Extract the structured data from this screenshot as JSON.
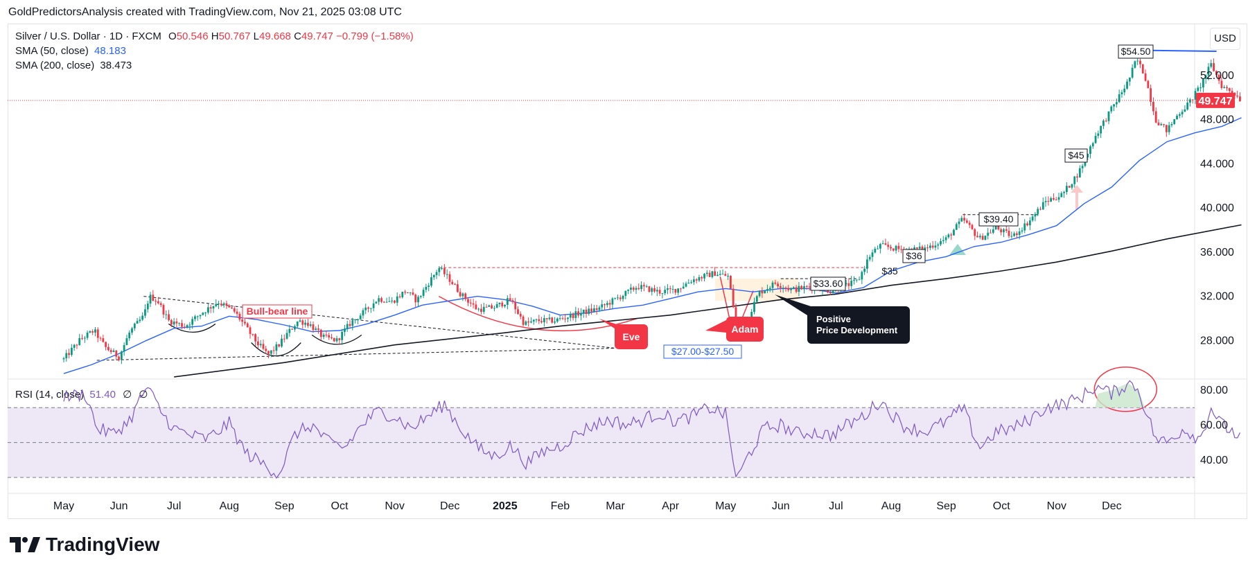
{
  "caption": "GoldPredictorsAnalysis created with TradingView.com, Nov 21, 2025 03:08 UTC",
  "brand": "TradingView",
  "currency_button": "USD",
  "legend": {
    "symbol": "Silver / U.S. Dollar · 1D · FXCM",
    "o_label": "O",
    "o_value": "50.546",
    "h_label": "H",
    "h_value": "50.767",
    "l_label": "L",
    "l_value": "49.668",
    "c_label": "C",
    "c_value": "49.747",
    "change": "−0.799 (−1.58%)",
    "sma50_label": "SMA (50, close)",
    "sma50_value": "48.183",
    "sma200_label": "SMA (200, close)",
    "sma200_value": "38.473",
    "rsi_label": "RSI (14, close)",
    "rsi_value": "51.40",
    "rsi_extra1": "∅",
    "rsi_extra2": "∅"
  },
  "colors": {
    "up": "#089981",
    "down": "#f23645",
    "sma50": "#2962ff",
    "sma200": "#131722",
    "rsi": "#7e57c2",
    "rsi_band": "#ede7f6",
    "annotation_red": "#f23645",
    "label_dark": "#131722"
  },
  "chart_data": [
    {
      "type": "candlestick",
      "title": "Silver / U.S. Dollar · 1D · FXCM",
      "x_ticks": [
        "May",
        "Jun",
        "Jul",
        "Aug",
        "Sep",
        "Oct",
        "Nov",
        "Dec",
        "2025",
        "Feb",
        "Mar",
        "Apr",
        "May",
        "Jun",
        "Jul",
        "Aug",
        "Sep",
        "Oct",
        "Nov",
        "Dec"
      ],
      "y_ticks": [
        "52.000",
        "48.000",
        "44.000",
        "40.000",
        "36.000",
        "32.000",
        "28.000"
      ],
      "ylim": [
        24.7,
        55.3
      ],
      "last_price": "49.747",
      "x_range_months": [
        0,
        20.5
      ],
      "price_path": [
        [
          0,
          26.3
        ],
        [
          0.3,
          28.1
        ],
        [
          0.55,
          28.9
        ],
        [
          0.75,
          27.4
        ],
        [
          1.0,
          26.5
        ],
        [
          1.2,
          28.8
        ],
        [
          1.45,
          30.2
        ],
        [
          1.55,
          32.0
        ],
        [
          1.7,
          31.6
        ],
        [
          1.9,
          29.8
        ],
        [
          2.2,
          29.3
        ],
        [
          2.5,
          30.5
        ],
        [
          2.8,
          31.5
        ],
        [
          3.1,
          30.6
        ],
        [
          3.3,
          29.2
        ],
        [
          3.5,
          27.8
        ],
        [
          3.7,
          26.7
        ],
        [
          3.9,
          27.6
        ],
        [
          4.05,
          28.6
        ],
        [
          4.25,
          29.8
        ],
        [
          4.45,
          29.5
        ],
        [
          4.7,
          28.3
        ],
        [
          4.95,
          28.0
        ],
        [
          5.2,
          29.6
        ],
        [
          5.45,
          30.6
        ],
        [
          5.7,
          31.8
        ],
        [
          5.95,
          31.5
        ],
        [
          6.2,
          32.5
        ],
        [
          6.4,
          31.6
        ],
        [
          6.6,
          33.1
        ],
        [
          6.8,
          34.6
        ],
        [
          7.0,
          33.5
        ],
        [
          7.2,
          32.2
        ],
        [
          7.5,
          30.8
        ],
        [
          7.8,
          31.0
        ],
        [
          8.1,
          31.7
        ],
        [
          8.35,
          29.5
        ],
        [
          8.6,
          29.8
        ],
        [
          8.9,
          29.8
        ],
        [
          9.3,
          30.4
        ],
        [
          9.7,
          30.9
        ],
        [
          10.1,
          32.0
        ],
        [
          10.4,
          32.9
        ],
        [
          10.8,
          32.4
        ],
        [
          11.1,
          32.6
        ],
        [
          11.4,
          33.5
        ],
        [
          11.8,
          34.1
        ],
        [
          12.05,
          33.8
        ],
        [
          12.2,
          29.2
        ],
        [
          12.4,
          30.0
        ],
        [
          12.6,
          32.3
        ],
        [
          12.9,
          33.2
        ],
        [
          13.2,
          32.6
        ],
        [
          13.6,
          32.9
        ],
        [
          13.9,
          32.5
        ],
        [
          14.2,
          33.0
        ],
        [
          14.4,
          33.4
        ],
        [
          14.6,
          35.6
        ],
        [
          14.8,
          36.6
        ],
        [
          15.2,
          36.2
        ],
        [
          15.6,
          36.3
        ],
        [
          16.0,
          37.2
        ],
        [
          16.3,
          39.0
        ],
        [
          16.6,
          37.2
        ],
        [
          16.9,
          38.2
        ],
        [
          17.2,
          37.4
        ],
        [
          17.5,
          38.8
        ],
        [
          17.8,
          40.6
        ],
        [
          18.1,
          41.2
        ],
        [
          18.4,
          43.2
        ],
        [
          18.7,
          46.5
        ],
        [
          19.0,
          49.0
        ],
        [
          19.3,
          51.5
        ],
        [
          19.45,
          53.5
        ],
        [
          19.6,
          52.0
        ],
        [
          19.8,
          48.0
        ],
        [
          20.0,
          47.0
        ],
        [
          20.2,
          48.5
        ],
        [
          20.4,
          49.5
        ],
        [
          20.6,
          51.0
        ],
        [
          20.8,
          53.0
        ],
        [
          21.0,
          51.0
        ],
        [
          21.2,
          50.5
        ],
        [
          21.35,
          49.75
        ]
      ],
      "sma50_path": [
        [
          0,
          25.0
        ],
        [
          0.5,
          25.8
        ],
        [
          1.0,
          26.8
        ],
        [
          1.5,
          28.0
        ],
        [
          2.0,
          29.1
        ],
        [
          2.5,
          29.3
        ],
        [
          3.0,
          30.2
        ],
        [
          3.5,
          29.9
        ],
        [
          4.0,
          29.4
        ],
        [
          4.5,
          28.8
        ],
        [
          5.0,
          28.9
        ],
        [
          5.5,
          29.5
        ],
        [
          6.0,
          30.3
        ],
        [
          6.5,
          31.2
        ],
        [
          7.0,
          31.6
        ],
        [
          7.5,
          32.0
        ],
        [
          8.0,
          31.7
        ],
        [
          8.5,
          31.1
        ],
        [
          9.0,
          30.3
        ],
        [
          9.5,
          30.5
        ],
        [
          10.0,
          30.9
        ],
        [
          10.5,
          31.2
        ],
        [
          11.0,
          31.8
        ],
        [
          11.5,
          32.4
        ],
        [
          12.0,
          32.7
        ],
        [
          12.5,
          32.4
        ],
        [
          13.0,
          32.7
        ],
        [
          13.5,
          32.7
        ],
        [
          14.0,
          32.3
        ],
        [
          14.5,
          32.8
        ],
        [
          15.0,
          34.3
        ],
        [
          15.5,
          35.1
        ],
        [
          16.0,
          35.6
        ],
        [
          16.5,
          36.5
        ],
        [
          17.0,
          36.9
        ],
        [
          17.5,
          37.6
        ],
        [
          18.0,
          38.4
        ],
        [
          18.5,
          40.4
        ],
        [
          19.0,
          41.9
        ],
        [
          19.5,
          44.3
        ],
        [
          20.0,
          46.0
        ],
        [
          20.5,
          46.8
        ],
        [
          21.0,
          47.4
        ],
        [
          21.35,
          48.18
        ]
      ],
      "sma200_path": [
        [
          2.0,
          24.7
        ],
        [
          4.0,
          26.0
        ],
        [
          6.0,
          27.6
        ],
        [
          8.0,
          28.7
        ],
        [
          9.0,
          29.3
        ],
        [
          10.0,
          29.8
        ],
        [
          11.0,
          30.3
        ],
        [
          12.0,
          31.0
        ],
        [
          13.0,
          31.7
        ],
        [
          14.0,
          32.2
        ],
        [
          15.0,
          33.0
        ],
        [
          16.0,
          33.6
        ],
        [
          17.0,
          34.3
        ],
        [
          18.0,
          35.1
        ],
        [
          19.0,
          36.1
        ],
        [
          20.0,
          37.2
        ],
        [
          21.35,
          38.47
        ]
      ],
      "annotations": [
        {
          "text": "Bull-bear line",
          "kind": "boxed-red"
        },
        {
          "text": "Eve",
          "kind": "callout-red"
        },
        {
          "text": "Adam",
          "kind": "callout-red"
        },
        {
          "text": "$27.00-$27.50",
          "kind": "boxed-blue"
        },
        {
          "text": "$33.60",
          "kind": "boxed-dark"
        },
        {
          "text": "$35",
          "kind": "plain"
        },
        {
          "text": "$36",
          "kind": "boxed-dark"
        },
        {
          "text": "$39.40",
          "kind": "boxed-dark"
        },
        {
          "text": "$45",
          "kind": "boxed-dark"
        },
        {
          "text": "$54.50",
          "kind": "boxed-dark"
        },
        {
          "text": "Positive\nPrice Development",
          "kind": "callout-dark"
        }
      ],
      "grid": false
    },
    {
      "type": "line",
      "title": "RSI (14, close)",
      "y_ticks": [
        "80.00",
        "60.00",
        "40.00"
      ],
      "ylim": [
        20,
        90
      ],
      "bands": [
        30,
        50,
        70
      ],
      "rsi_path": [
        [
          0,
          76
        ],
        [
          0.4,
          78
        ],
        [
          0.6,
          58
        ],
        [
          0.9,
          55
        ],
        [
          1.2,
          63
        ],
        [
          1.5,
          82
        ],
        [
          1.8,
          66
        ],
        [
          2.0,
          58
        ],
        [
          2.3,
          54
        ],
        [
          2.6,
          52
        ],
        [
          3.0,
          61
        ],
        [
          3.3,
          44
        ],
        [
          3.6,
          38
        ],
        [
          3.9,
          32
        ],
        [
          4.2,
          55
        ],
        [
          4.5,
          60
        ],
        [
          4.8,
          50
        ],
        [
          5.1,
          47
        ],
        [
          5.4,
          60
        ],
        [
          5.7,
          68
        ],
        [
          6.0,
          65
        ],
        [
          6.3,
          58
        ],
        [
          6.6,
          65
        ],
        [
          6.9,
          72
        ],
        [
          7.2,
          58
        ],
        [
          7.5,
          47
        ],
        [
          7.8,
          42
        ],
        [
          8.1,
          48
        ],
        [
          8.4,
          38
        ],
        [
          8.7,
          45
        ],
        [
          9.0,
          48
        ],
        [
          9.3,
          55
        ],
        [
          9.6,
          60
        ],
        [
          9.9,
          63
        ],
        [
          10.2,
          60
        ],
        [
          10.5,
          63
        ],
        [
          10.8,
          67
        ],
        [
          11.1,
          62
        ],
        [
          11.4,
          65
        ],
        [
          11.7,
          70
        ],
        [
          12.0,
          66
        ],
        [
          12.2,
          28
        ],
        [
          12.4,
          42
        ],
        [
          12.7,
          58
        ],
        [
          13.0,
          60
        ],
        [
          13.3,
          55
        ],
        [
          13.6,
          56
        ],
        [
          13.9,
          54
        ],
        [
          14.2,
          60
        ],
        [
          14.5,
          65
        ],
        [
          14.8,
          74
        ],
        [
          15.2,
          60
        ],
        [
          15.6,
          56
        ],
        [
          16.0,
          62
        ],
        [
          16.3,
          70
        ],
        [
          16.6,
          47
        ],
        [
          16.9,
          56
        ],
        [
          17.2,
          58
        ],
        [
          17.5,
          63
        ],
        [
          17.8,
          70
        ],
        [
          18.1,
          72
        ],
        [
          18.4,
          75
        ],
        [
          18.7,
          82
        ],
        [
          19.0,
          78
        ],
        [
          19.3,
          84
        ],
        [
          19.45,
          82
        ],
        [
          19.6,
          70
        ],
        [
          19.8,
          52
        ],
        [
          20.0,
          50
        ],
        [
          20.3,
          58
        ],
        [
          20.6,
          52
        ],
        [
          20.8,
          70
        ],
        [
          21.0,
          60
        ],
        [
          21.2,
          56
        ],
        [
          21.35,
          51.4
        ]
      ]
    }
  ]
}
